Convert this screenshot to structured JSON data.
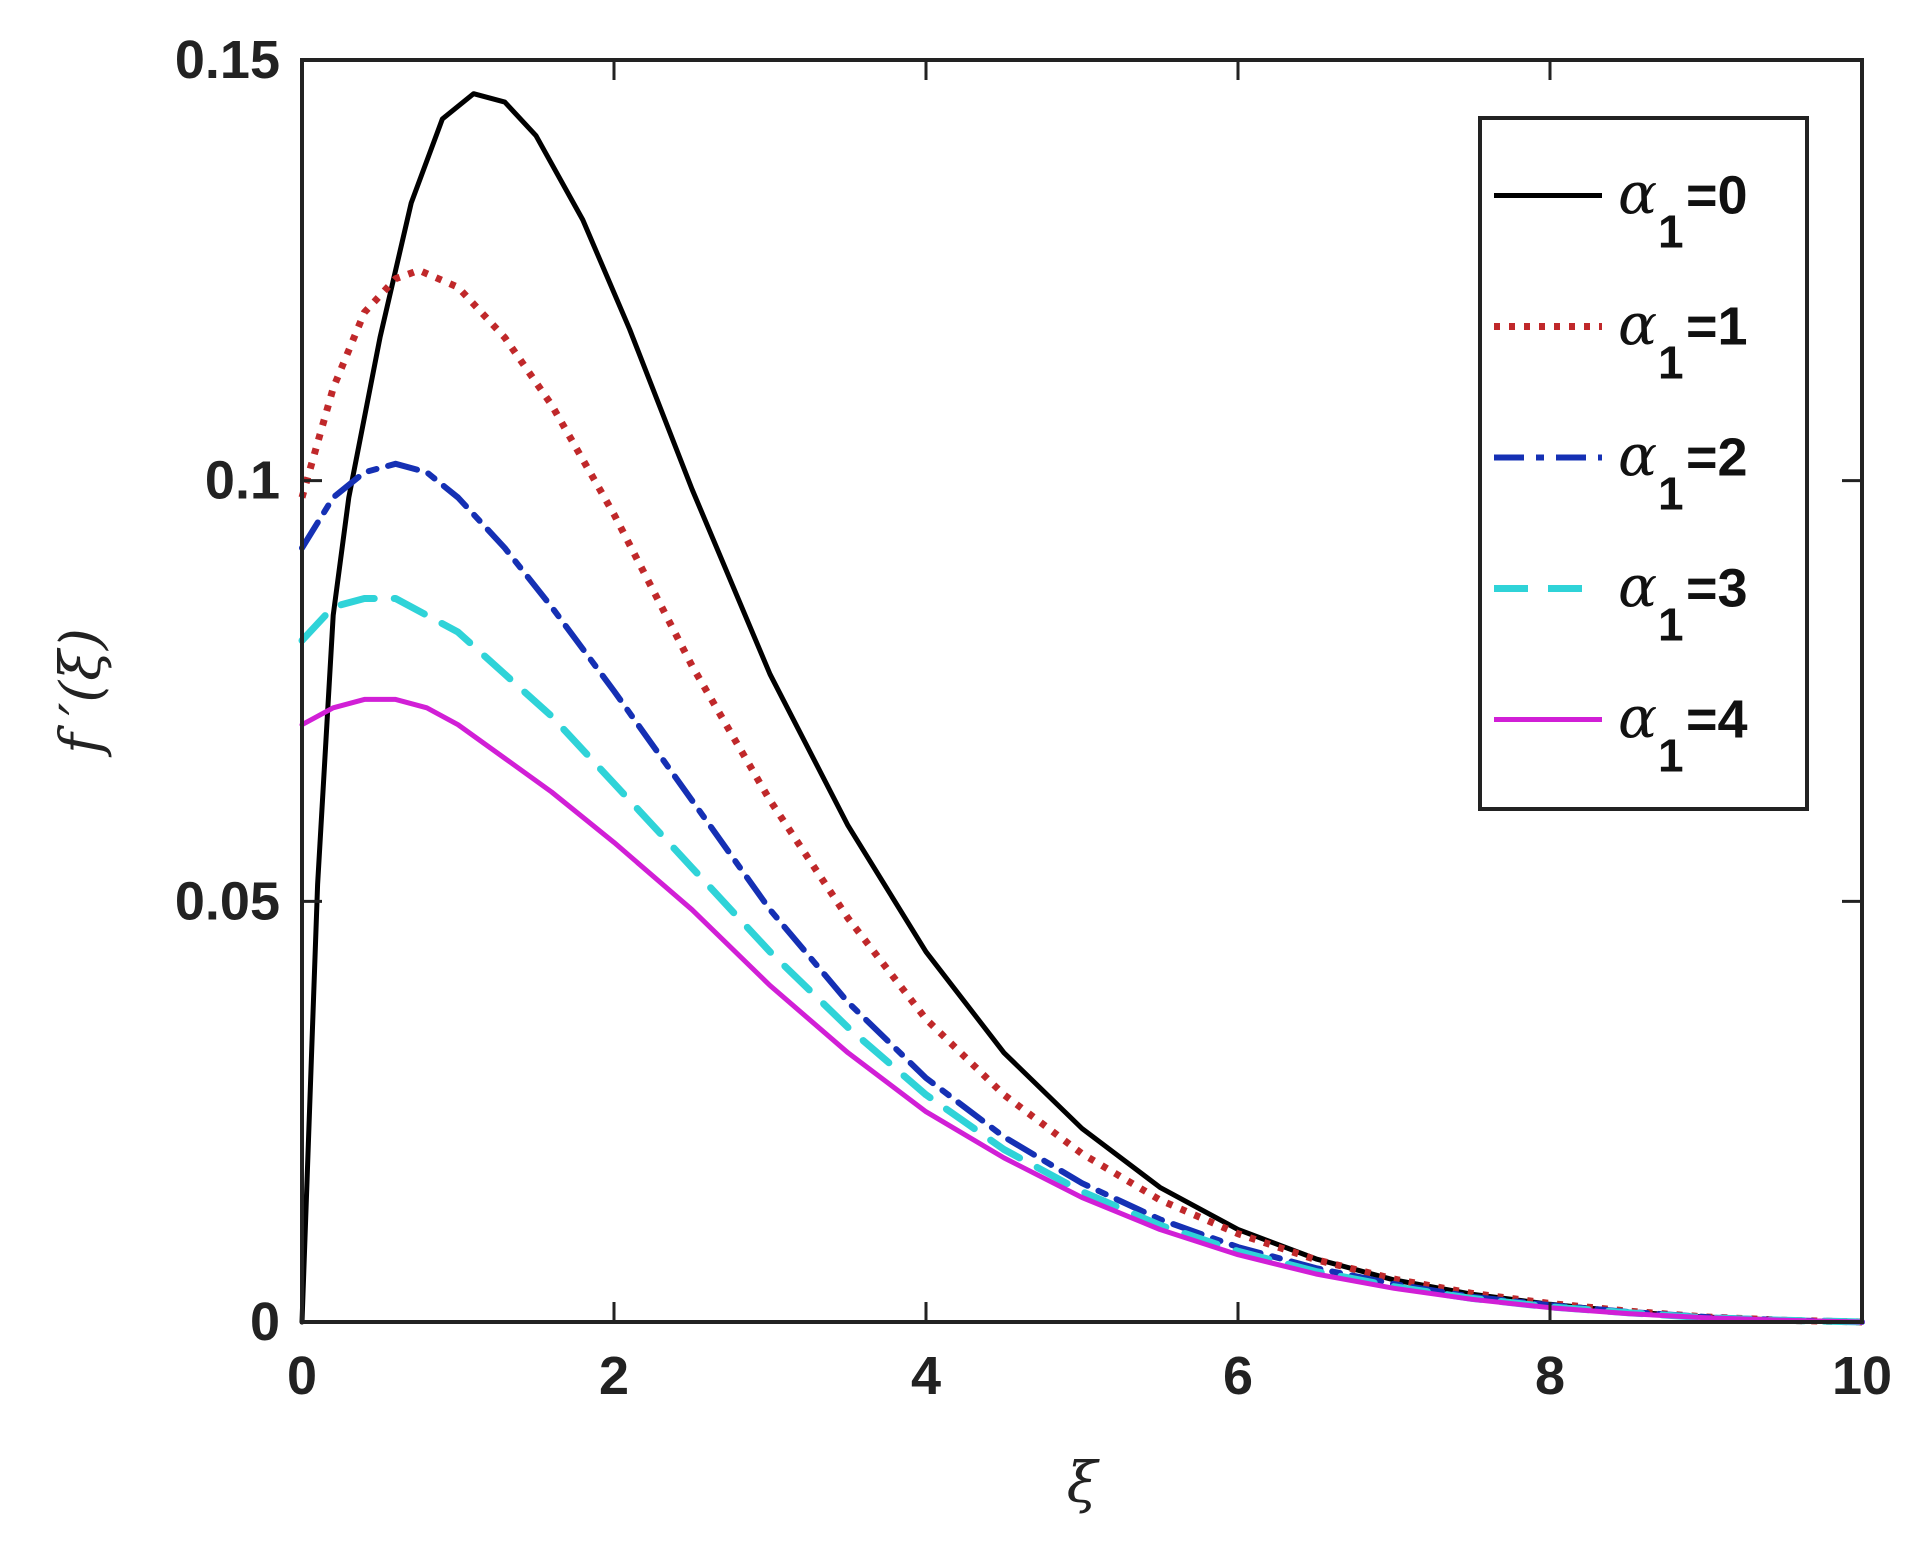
{
  "chart_data": {
    "type": "line",
    "xlabel": "ξ",
    "ylabel": "f ′(ξ)",
    "xlim": [
      0,
      10
    ],
    "ylim": [
      0,
      0.15
    ],
    "xticks": [
      "0",
      "2",
      "4",
      "6",
      "8",
      "10"
    ],
    "yticks": [
      "0",
      "0.05",
      "0.1",
      "0.15"
    ],
    "grid": false,
    "legend_position": "top-right",
    "series": [
      {
        "name": "α1=0",
        "legend_symbol": "α",
        "legend_subscript": "1",
        "legend_value": "=0",
        "color": "#000000",
        "style": "solid",
        "x": [
          0,
          0.1,
          0.2,
          0.3,
          0.5,
          0.7,
          0.9,
          1.1,
          1.3,
          1.5,
          1.8,
          2.1,
          2.5,
          3.0,
          3.5,
          4.0,
          4.5,
          5.0,
          5.5,
          6.0,
          6.5,
          7.0,
          7.5,
          8.0,
          8.5,
          9.0,
          9.5,
          10.0
        ],
        "y": [
          0,
          0.052,
          0.084,
          0.098,
          0.117,
          0.133,
          0.143,
          0.146,
          0.145,
          0.141,
          0.131,
          0.118,
          0.099,
          0.077,
          0.059,
          0.044,
          0.032,
          0.023,
          0.016,
          0.011,
          0.0075,
          0.005,
          0.0033,
          0.0021,
          0.0012,
          0.0006,
          0.0002,
          0
        ]
      },
      {
        "name": "α1=1",
        "legend_symbol": "α",
        "legend_subscript": "1",
        "legend_value": "=1",
        "color": "#c0282a",
        "style": "dotted",
        "x": [
          0,
          0.2,
          0.4,
          0.6,
          0.75,
          1.0,
          1.3,
          1.6,
          2.0,
          2.5,
          3.0,
          3.5,
          4.0,
          4.5,
          5.0,
          5.5,
          6.0,
          6.5,
          7.0,
          7.5,
          8.0,
          8.5,
          9.0,
          9.5,
          10.0
        ],
        "y": [
          0.098,
          0.111,
          0.12,
          0.124,
          0.125,
          0.123,
          0.117,
          0.109,
          0.096,
          0.078,
          0.062,
          0.048,
          0.036,
          0.027,
          0.02,
          0.0145,
          0.0105,
          0.0074,
          0.0051,
          0.0034,
          0.0022,
          0.0013,
          0.0006,
          0.0002,
          0
        ]
      },
      {
        "name": "α1=2",
        "legend_symbol": "α",
        "legend_subscript": "1",
        "legend_value": "=2",
        "color": "#1530b4",
        "style": "dashdot",
        "x": [
          0,
          0.2,
          0.4,
          0.6,
          0.8,
          1.0,
          1.3,
          1.6,
          2.0,
          2.5,
          3.0,
          3.5,
          4.0,
          4.5,
          5.0,
          5.5,
          6.0,
          6.5,
          7.0,
          7.5,
          8.0,
          8.5,
          9.0,
          9.5,
          10.0
        ],
        "y": [
          0.092,
          0.098,
          0.101,
          0.102,
          0.101,
          0.098,
          0.092,
          0.085,
          0.075,
          0.062,
          0.049,
          0.038,
          0.029,
          0.022,
          0.0165,
          0.0122,
          0.0089,
          0.0064,
          0.0045,
          0.003,
          0.002,
          0.0012,
          0.0006,
          0.0002,
          0
        ]
      },
      {
        "name": "α1=3",
        "legend_symbol": "α",
        "legend_subscript": "1",
        "legend_value": "=3",
        "color": "#2fd3d8",
        "style": "dashed",
        "x": [
          0,
          0.2,
          0.4,
          0.6,
          0.8,
          1.0,
          1.3,
          1.6,
          2.0,
          2.5,
          3.0,
          3.5,
          4.0,
          4.5,
          5.0,
          5.5,
          6.0,
          6.5,
          7.0,
          7.5,
          8.0,
          8.5,
          9.0,
          9.5,
          10.0
        ],
        "y": [
          0.081,
          0.085,
          0.086,
          0.086,
          0.084,
          0.082,
          0.077,
          0.072,
          0.064,
          0.054,
          0.044,
          0.035,
          0.027,
          0.0205,
          0.0155,
          0.0115,
          0.0084,
          0.006,
          0.0042,
          0.0028,
          0.0018,
          0.0011,
          0.0005,
          0.0002,
          0
        ]
      },
      {
        "name": "α1=4",
        "legend_symbol": "α",
        "legend_subscript": "1",
        "legend_value": "=4",
        "color": "#d11fd6",
        "style": "solid",
        "x": [
          0,
          0.2,
          0.4,
          0.6,
          0.8,
          1.0,
          1.3,
          1.6,
          2.0,
          2.5,
          3.0,
          3.5,
          4.0,
          4.5,
          5.0,
          5.5,
          6.0,
          6.5,
          7.0,
          7.5,
          8.0,
          8.5,
          9.0,
          9.5,
          10.0
        ],
        "y": [
          0.071,
          0.073,
          0.074,
          0.074,
          0.073,
          0.071,
          0.067,
          0.063,
          0.057,
          0.049,
          0.04,
          0.032,
          0.025,
          0.0195,
          0.0148,
          0.011,
          0.008,
          0.0057,
          0.004,
          0.0027,
          0.0017,
          0.001,
          0.0005,
          0.0002,
          0
        ]
      }
    ]
  }
}
